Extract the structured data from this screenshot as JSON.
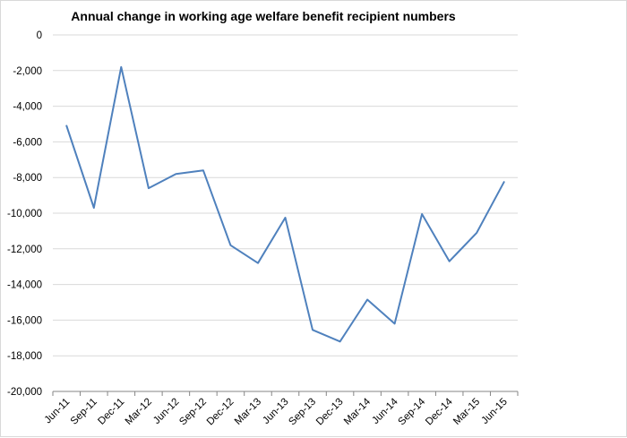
{
  "chart_data": {
    "type": "line",
    "title": "Annual change in working age welfare benefit recipient numbers",
    "xlabel": "",
    "ylabel": "",
    "categories": [
      "Jun-11",
      "Sep-11",
      "Dec-11",
      "Mar-12",
      "Jun-12",
      "Sep-12",
      "Dec-12",
      "Mar-13",
      "Jun-13",
      "Sep-13",
      "Dec-13",
      "Mar-14",
      "Jun-14",
      "Sep-14",
      "Dec-14",
      "Mar-15",
      "Jun-15"
    ],
    "series": [
      {
        "color": "#4f81bd",
        "values": [
          -5100,
          -9700,
          -1800,
          -8600,
          -7800,
          -7600,
          -11800,
          -12800,
          -10250,
          -16550,
          -17200,
          -14850,
          -16200,
          -10050,
          -12700,
          -11100,
          -8250
        ]
      }
    ],
    "yticks": [
      "0",
      "-2,000",
      "-4,000",
      "-6,000",
      "-8,000",
      "-10,000",
      "-12,000",
      "-14,000",
      "-16,000",
      "-18,000",
      "-20,000"
    ],
    "ylim": [
      -20000,
      0
    ],
    "grid": true,
    "legend": "none"
  }
}
